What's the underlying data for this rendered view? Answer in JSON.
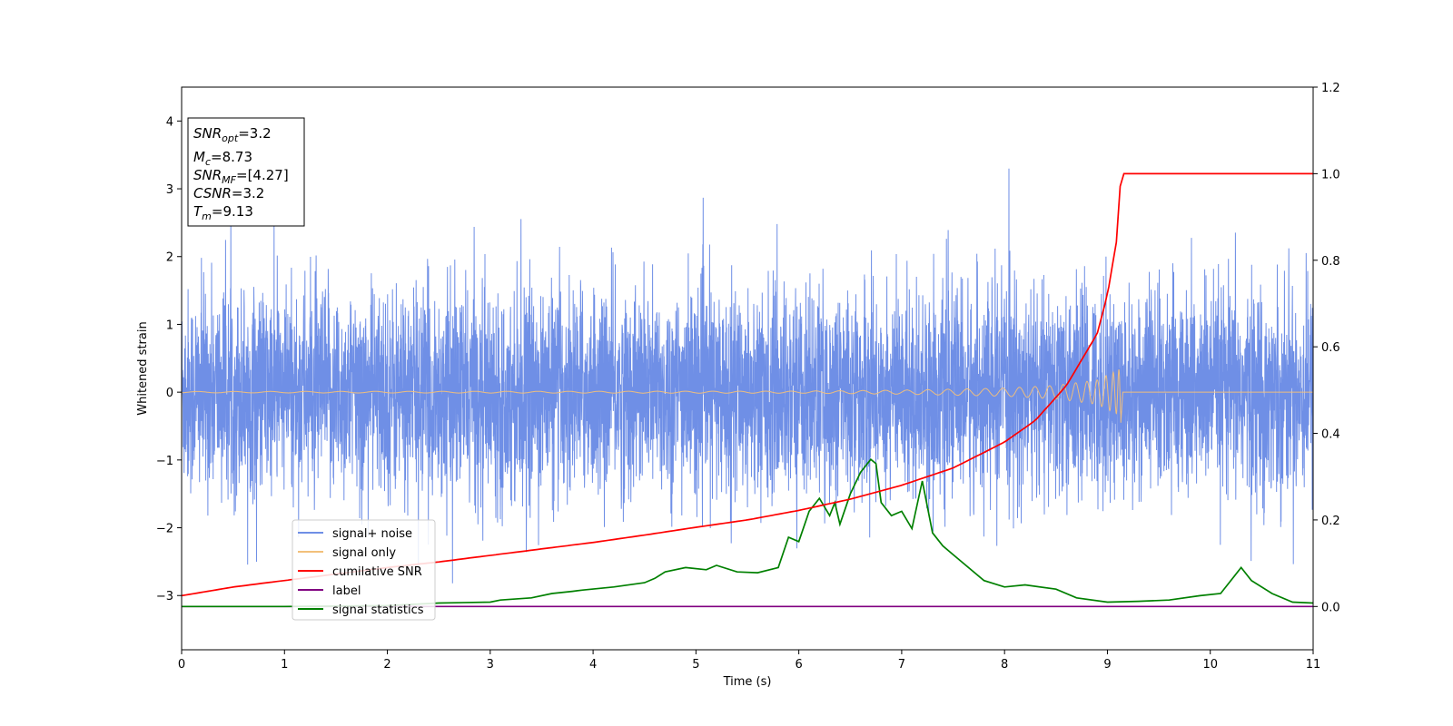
{
  "colors": {
    "noise": "#6f8fe6",
    "signal": "#f2c07a",
    "csnr": "#ff0000",
    "label": "#800080",
    "stats": "#008000"
  },
  "chart_data": {
    "type": "line",
    "xlabel": "Time (s)",
    "ylabel": "Whitened strain",
    "xlim": [
      0,
      11
    ],
    "ylim": [
      -3.8,
      4.5
    ],
    "y2lim": [
      -0.1,
      1.2
    ],
    "xticks": [
      "0",
      "1",
      "2",
      "3",
      "4",
      "5",
      "6",
      "7",
      "8",
      "9",
      "10",
      "11"
    ],
    "yticks": [
      "4",
      "3",
      "2",
      "1",
      "0",
      "−1",
      "−2",
      "−3"
    ],
    "y2ticks": [
      "1.2",
      "1.0",
      "0.8",
      "0.6",
      "0.4",
      "0.2",
      "0.0"
    ],
    "grid": false,
    "legend_position": "lower-left",
    "info_box": {
      "lines": [
        {
          "sym": "SNR",
          "sub": "opt",
          "val": "=3.2"
        },
        {
          "sym": "M",
          "sub": "c",
          "val": "=8.73"
        },
        {
          "sym": "SNR",
          "sub": "MF",
          "val": "=[4.27]"
        },
        {
          "sym": "CSNR",
          "sub": "",
          "val": "=3.2"
        },
        {
          "sym": "T",
          "sub": "m",
          "val": "=9.13"
        }
      ]
    },
    "series": [
      {
        "name": "signal+ noise",
        "axis": "left",
        "kind": "noise",
        "std": 0.75,
        "t_end": 11
      },
      {
        "name": "signal only",
        "axis": "left",
        "kind": "chirp",
        "merger_time": 9.13,
        "envelope": [
          [
            0,
            0.01
          ],
          [
            6,
            0.015
          ],
          [
            7,
            0.03
          ],
          [
            8,
            0.06
          ],
          [
            8.5,
            0.1
          ],
          [
            8.9,
            0.18
          ],
          [
            9.13,
            0.35
          ]
        ]
      },
      {
        "name": "cumilative SNR",
        "axis": "right",
        "x": [
          0,
          0.5,
          1,
          1.5,
          2,
          2.5,
          3,
          3.5,
          4,
          4.5,
          5,
          5.5,
          6,
          6.5,
          7,
          7.5,
          8,
          8.3,
          8.6,
          8.9,
          9.0,
          9.1,
          9.13,
          11
        ],
        "values": [
          0.025,
          0.045,
          0.06,
          0.075,
          0.09,
          0.103,
          0.118,
          0.133,
          0.148,
          0.165,
          0.183,
          0.2,
          0.222,
          0.248,
          0.28,
          0.32,
          0.38,
          0.43,
          0.51,
          0.63,
          0.72,
          0.86,
          1.0,
          1.0
        ]
      },
      {
        "name": "label",
        "axis": "right",
        "x": [
          0,
          11
        ],
        "values": [
          0.0,
          0.0
        ]
      },
      {
        "name": "signal statistics",
        "axis": "right",
        "x": [
          0,
          1,
          2,
          2.5,
          3,
          3.1,
          3.4,
          3.6,
          3.8,
          3.9,
          4.2,
          4.5,
          4.6,
          4.7,
          4.9,
          5.1,
          5.2,
          5.4,
          5.6,
          5.8,
          5.9,
          6.0,
          6.1,
          6.2,
          6.3,
          6.35,
          6.4,
          6.5,
          6.6,
          6.7,
          6.75,
          6.8,
          6.9,
          7.0,
          7.1,
          7.2,
          7.3,
          7.4,
          7.5,
          7.8,
          8.0,
          8.2,
          8.5,
          8.7,
          9.0,
          9.3,
          9.6,
          9.9,
          10.1,
          10.3,
          10.4,
          10.6,
          10.8,
          11
        ],
        "values": [
          0.0,
          0.0,
          0.002,
          0.008,
          0.01,
          0.015,
          0.02,
          0.03,
          0.035,
          0.038,
          0.045,
          0.055,
          0.065,
          0.08,
          0.09,
          0.085,
          0.095,
          0.08,
          0.078,
          0.09,
          0.16,
          0.15,
          0.22,
          0.25,
          0.21,
          0.24,
          0.19,
          0.26,
          0.31,
          0.34,
          0.33,
          0.24,
          0.21,
          0.22,
          0.18,
          0.29,
          0.17,
          0.14,
          0.12,
          0.06,
          0.045,
          0.05,
          0.04,
          0.02,
          0.01,
          0.012,
          0.015,
          0.025,
          0.03,
          0.09,
          0.06,
          0.03,
          0.01,
          0.008
        ]
      }
    ]
  }
}
